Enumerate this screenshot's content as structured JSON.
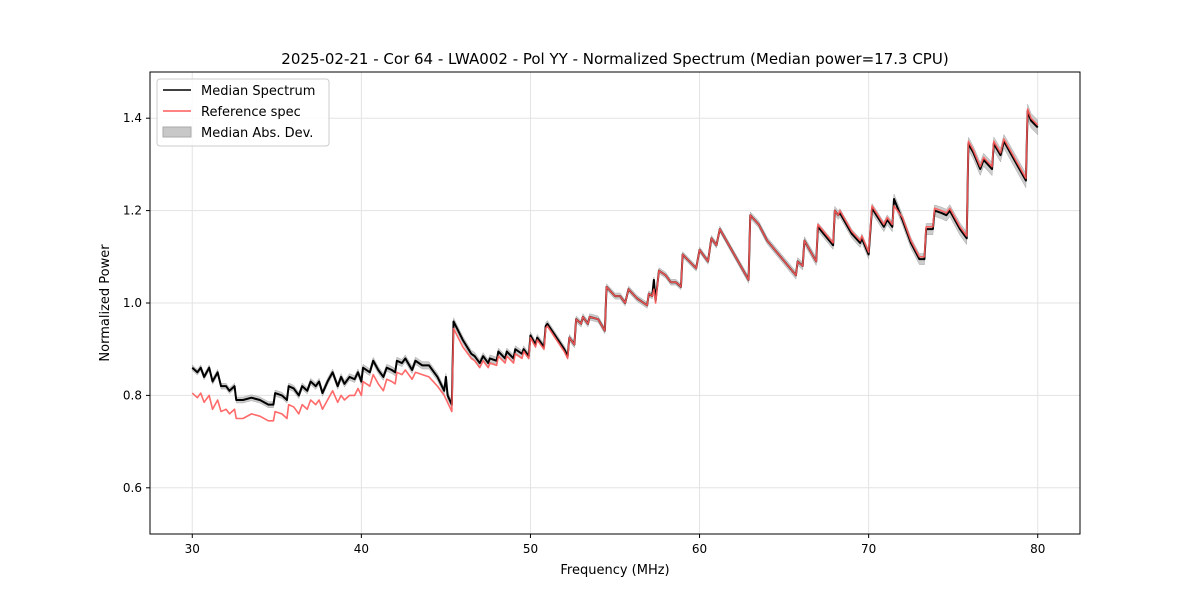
{
  "chart_data": {
    "type": "line",
    "title": "2025-02-21 - Cor 64 - LWA002 - Pol YY - Normalized Spectrum (Median power=17.3 CPU)",
    "xlabel": "Frequency (MHz)",
    "ylabel": "Normalized Power",
    "xlim": [
      27.5,
      82.5
    ],
    "ylim": [
      0.5,
      1.5
    ],
    "xticks": [
      30,
      40,
      50,
      60,
      70,
      80
    ],
    "xtick_labels": [
      "30",
      "40",
      "50",
      "60",
      "70",
      "80"
    ],
    "yticks": [
      0.6,
      0.8,
      1.0,
      1.2,
      1.4
    ],
    "ytick_labels": [
      "0.6",
      "0.8",
      "1.0",
      "1.2",
      "1.4"
    ],
    "grid": true,
    "legend_position": "top-left",
    "legend": [
      "Median Spectrum",
      "Reference spec",
      "Median Abs. Dev."
    ],
    "colors": {
      "median": "#000000",
      "reference": "#ff5a5a",
      "mad": "#bbbbbb"
    },
    "median": [
      [
        30.0,
        0.86
      ],
      [
        30.3,
        0.85
      ],
      [
        30.5,
        0.86
      ],
      [
        30.7,
        0.84
      ],
      [
        31.0,
        0.86
      ],
      [
        31.2,
        0.83
      ],
      [
        31.5,
        0.85
      ],
      [
        31.7,
        0.82
      ],
      [
        32.0,
        0.82
      ],
      [
        32.2,
        0.81
      ],
      [
        32.5,
        0.82
      ],
      [
        32.6,
        0.79
      ],
      [
        33.0,
        0.79
      ],
      [
        33.5,
        0.795
      ],
      [
        34.0,
        0.79
      ],
      [
        34.5,
        0.78
      ],
      [
        34.8,
        0.78
      ],
      [
        34.9,
        0.805
      ],
      [
        35.3,
        0.8
      ],
      [
        35.6,
        0.79
      ],
      [
        35.7,
        0.82
      ],
      [
        36.0,
        0.815
      ],
      [
        36.3,
        0.8
      ],
      [
        36.5,
        0.82
      ],
      [
        36.8,
        0.81
      ],
      [
        37.0,
        0.83
      ],
      [
        37.3,
        0.82
      ],
      [
        37.5,
        0.83
      ],
      [
        37.7,
        0.805
      ],
      [
        38.0,
        0.83
      ],
      [
        38.3,
        0.85
      ],
      [
        38.6,
        0.82
      ],
      [
        38.8,
        0.84
      ],
      [
        39.0,
        0.825
      ],
      [
        39.3,
        0.84
      ],
      [
        39.6,
        0.835
      ],
      [
        39.8,
        0.85
      ],
      [
        40.0,
        0.83
      ],
      [
        40.1,
        0.86
      ],
      [
        40.5,
        0.85
      ],
      [
        40.7,
        0.875
      ],
      [
        41.0,
        0.855
      ],
      [
        41.3,
        0.84
      ],
      [
        41.5,
        0.86
      ],
      [
        41.8,
        0.855
      ],
      [
        42.0,
        0.85
      ],
      [
        42.1,
        0.875
      ],
      [
        42.4,
        0.87
      ],
      [
        42.6,
        0.88
      ],
      [
        43.0,
        0.855
      ],
      [
        43.2,
        0.875
      ],
      [
        43.6,
        0.865
      ],
      [
        44.0,
        0.865
      ],
      [
        44.5,
        0.84
      ],
      [
        44.9,
        0.81
      ],
      [
        45.0,
        0.84
      ],
      [
        45.1,
        0.8
      ],
      [
        45.35,
        0.78
      ],
      [
        45.45,
        0.96
      ],
      [
        46.0,
        0.92
      ],
      [
        46.5,
        0.89
      ],
      [
        46.7,
        0.885
      ],
      [
        47.0,
        0.87
      ],
      [
        47.2,
        0.885
      ],
      [
        47.5,
        0.87
      ],
      [
        47.6,
        0.88
      ],
      [
        48.0,
        0.875
      ],
      [
        48.1,
        0.895
      ],
      [
        48.5,
        0.88
      ],
      [
        48.6,
        0.895
      ],
      [
        49.0,
        0.88
      ],
      [
        49.1,
        0.9
      ],
      [
        49.5,
        0.89
      ],
      [
        49.6,
        0.9
      ],
      [
        49.9,
        0.885
      ],
      [
        50.0,
        0.93
      ],
      [
        50.3,
        0.91
      ],
      [
        50.4,
        0.925
      ],
      [
        50.8,
        0.905
      ],
      [
        50.9,
        0.95
      ],
      [
        51.0,
        0.955
      ],
      [
        52.0,
        0.9
      ],
      [
        52.2,
        0.885
      ],
      [
        52.3,
        0.925
      ],
      [
        52.6,
        0.91
      ],
      [
        52.7,
        0.965
      ],
      [
        53.0,
        0.955
      ],
      [
        53.1,
        0.97
      ],
      [
        53.4,
        0.955
      ],
      [
        53.5,
        0.97
      ],
      [
        54.0,
        0.965
      ],
      [
        54.4,
        0.94
      ],
      [
        54.5,
        1.035
      ],
      [
        55.0,
        1.015
      ],
      [
        55.3,
        1.015
      ],
      [
        55.6,
        1.0
      ],
      [
        55.8,
        1.03
      ],
      [
        56.3,
        1.01
      ],
      [
        56.9,
        0.995
      ],
      [
        57.0,
        1.02
      ],
      [
        57.2,
        1.015
      ],
      [
        57.3,
        1.05
      ],
      [
        57.4,
        1.005
      ],
      [
        57.6,
        1.07
      ],
      [
        58.0,
        1.06
      ],
      [
        58.3,
        1.045
      ],
      [
        58.6,
        1.045
      ],
      [
        58.9,
        1.035
      ],
      [
        59.0,
        1.105
      ],
      [
        59.8,
        1.075
      ],
      [
        60.0,
        1.115
      ],
      [
        60.5,
        1.09
      ],
      [
        60.7,
        1.14
      ],
      [
        61.0,
        1.125
      ],
      [
        61.2,
        1.16
      ],
      [
        62.9,
        1.05
      ],
      [
        63.0,
        1.19
      ],
      [
        63.5,
        1.17
      ],
      [
        64.0,
        1.135
      ],
      [
        65.7,
        1.06
      ],
      [
        65.8,
        1.09
      ],
      [
        66.1,
        1.08
      ],
      [
        66.2,
        1.135
      ],
      [
        66.9,
        1.09
      ],
      [
        67.0,
        1.165
      ],
      [
        67.9,
        1.125
      ],
      [
        68.0,
        1.2
      ],
      [
        68.2,
        1.19
      ],
      [
        68.3,
        1.195
      ],
      [
        69.0,
        1.15
      ],
      [
        69.5,
        1.13
      ],
      [
        69.6,
        1.14
      ],
      [
        70.0,
        1.105
      ],
      [
        70.2,
        1.205
      ],
      [
        70.9,
        1.165
      ],
      [
        71.1,
        1.18
      ],
      [
        71.4,
        1.165
      ],
      [
        71.5,
        1.225
      ],
      [
        72.0,
        1.18
      ],
      [
        72.5,
        1.13
      ],
      [
        73.0,
        1.095
      ],
      [
        73.3,
        1.095
      ],
      [
        73.4,
        1.16
      ],
      [
        73.8,
        1.16
      ],
      [
        73.9,
        1.2
      ],
      [
        74.3,
        1.195
      ],
      [
        74.6,
        1.19
      ],
      [
        74.8,
        1.2
      ],
      [
        75.4,
        1.16
      ],
      [
        75.8,
        1.14
      ],
      [
        75.9,
        1.345
      ],
      [
        76.2,
        1.325
      ],
      [
        76.6,
        1.29
      ],
      [
        76.8,
        1.31
      ],
      [
        77.3,
        1.29
      ],
      [
        77.4,
        1.345
      ],
      [
        77.8,
        1.32
      ],
      [
        78.0,
        1.35
      ],
      [
        79.3,
        1.265
      ],
      [
        79.4,
        1.415
      ],
      [
        79.6,
        1.395
      ],
      [
        80.0,
        1.38
      ]
    ],
    "reference": [
      [
        30.0,
        0.805
      ],
      [
        30.3,
        0.795
      ],
      [
        30.5,
        0.805
      ],
      [
        30.7,
        0.785
      ],
      [
        31.0,
        0.8
      ],
      [
        31.2,
        0.77
      ],
      [
        31.5,
        0.79
      ],
      [
        31.7,
        0.765
      ],
      [
        32.0,
        0.77
      ],
      [
        32.2,
        0.76
      ],
      [
        32.5,
        0.77
      ],
      [
        32.6,
        0.75
      ],
      [
        33.0,
        0.75
      ],
      [
        33.5,
        0.76
      ],
      [
        34.0,
        0.755
      ],
      [
        34.5,
        0.745
      ],
      [
        34.8,
        0.745
      ],
      [
        34.9,
        0.765
      ],
      [
        35.3,
        0.76
      ],
      [
        35.6,
        0.75
      ],
      [
        35.7,
        0.78
      ],
      [
        36.0,
        0.775
      ],
      [
        36.3,
        0.76
      ],
      [
        36.5,
        0.78
      ],
      [
        36.8,
        0.77
      ],
      [
        37.0,
        0.79
      ],
      [
        37.3,
        0.78
      ],
      [
        37.5,
        0.79
      ],
      [
        37.7,
        0.77
      ],
      [
        38.0,
        0.79
      ],
      [
        38.3,
        0.81
      ],
      [
        38.6,
        0.785
      ],
      [
        38.8,
        0.8
      ],
      [
        39.0,
        0.79
      ],
      [
        39.3,
        0.8
      ],
      [
        39.6,
        0.8
      ],
      [
        39.8,
        0.815
      ],
      [
        40.0,
        0.8
      ],
      [
        40.1,
        0.83
      ],
      [
        40.5,
        0.82
      ],
      [
        40.7,
        0.845
      ],
      [
        41.0,
        0.825
      ],
      [
        41.3,
        0.81
      ],
      [
        41.5,
        0.835
      ],
      [
        41.8,
        0.83
      ],
      [
        42.0,
        0.825
      ],
      [
        42.1,
        0.85
      ],
      [
        42.4,
        0.845
      ],
      [
        42.6,
        0.855
      ],
      [
        43.0,
        0.835
      ],
      [
        43.2,
        0.85
      ],
      [
        43.6,
        0.845
      ],
      [
        44.0,
        0.84
      ],
      [
        44.5,
        0.82
      ],
      [
        44.9,
        0.8
      ],
      [
        45.35,
        0.765
      ],
      [
        45.45,
        0.945
      ],
      [
        46.0,
        0.905
      ],
      [
        46.5,
        0.88
      ],
      [
        46.7,
        0.875
      ],
      [
        47.0,
        0.86
      ],
      [
        47.2,
        0.875
      ],
      [
        47.5,
        0.86
      ],
      [
        47.6,
        0.87
      ],
      [
        48.0,
        0.865
      ],
      [
        48.1,
        0.885
      ],
      [
        48.5,
        0.87
      ],
      [
        48.6,
        0.885
      ],
      [
        49.0,
        0.87
      ],
      [
        49.1,
        0.89
      ],
      [
        49.5,
        0.88
      ],
      [
        49.6,
        0.895
      ],
      [
        49.9,
        0.88
      ],
      [
        50.0,
        0.925
      ],
      [
        50.3,
        0.905
      ],
      [
        50.4,
        0.92
      ],
      [
        50.8,
        0.9
      ],
      [
        50.9,
        0.945
      ],
      [
        51.0,
        0.95
      ],
      [
        52.0,
        0.895
      ],
      [
        52.2,
        0.88
      ],
      [
        52.3,
        0.925
      ],
      [
        52.6,
        0.91
      ],
      [
        52.7,
        0.965
      ],
      [
        53.0,
        0.955
      ],
      [
        53.1,
        0.97
      ],
      [
        53.4,
        0.955
      ],
      [
        53.5,
        0.97
      ],
      [
        54.0,
        0.965
      ],
      [
        54.4,
        0.94
      ],
      [
        54.5,
        1.035
      ],
      [
        55.0,
        1.015
      ],
      [
        55.3,
        1.015
      ],
      [
        55.6,
        1.0
      ],
      [
        55.8,
        1.03
      ],
      [
        56.3,
        1.01
      ],
      [
        56.9,
        0.995
      ],
      [
        57.0,
        1.02
      ],
      [
        57.2,
        1.015
      ],
      [
        57.3,
        1.03
      ],
      [
        57.4,
        1.0
      ],
      [
        57.6,
        1.07
      ],
      [
        58.0,
        1.06
      ],
      [
        58.3,
        1.045
      ],
      [
        58.6,
        1.045
      ],
      [
        58.9,
        1.035
      ],
      [
        59.0,
        1.105
      ],
      [
        59.8,
        1.075
      ],
      [
        60.0,
        1.115
      ],
      [
        60.5,
        1.09
      ],
      [
        60.7,
        1.14
      ],
      [
        61.0,
        1.125
      ],
      [
        61.2,
        1.16
      ],
      [
        62.9,
        1.05
      ],
      [
        63.0,
        1.19
      ],
      [
        63.5,
        1.17
      ],
      [
        64.0,
        1.135
      ],
      [
        65.7,
        1.06
      ],
      [
        65.8,
        1.09
      ],
      [
        66.1,
        1.08
      ],
      [
        66.2,
        1.135
      ],
      [
        66.9,
        1.09
      ],
      [
        67.0,
        1.17
      ],
      [
        67.9,
        1.13
      ],
      [
        68.0,
        1.2
      ],
      [
        68.2,
        1.19
      ],
      [
        68.3,
        1.2
      ],
      [
        69.0,
        1.155
      ],
      [
        69.5,
        1.135
      ],
      [
        69.6,
        1.145
      ],
      [
        70.0,
        1.11
      ],
      [
        70.2,
        1.21
      ],
      [
        70.9,
        1.17
      ],
      [
        71.1,
        1.185
      ],
      [
        71.4,
        1.17
      ],
      [
        71.5,
        1.21
      ],
      [
        72.0,
        1.185
      ],
      [
        72.5,
        1.135
      ],
      [
        73.0,
        1.1
      ],
      [
        73.3,
        1.1
      ],
      [
        73.4,
        1.165
      ],
      [
        73.8,
        1.165
      ],
      [
        73.9,
        1.205
      ],
      [
        74.3,
        1.2
      ],
      [
        74.6,
        1.195
      ],
      [
        74.8,
        1.205
      ],
      [
        75.4,
        1.165
      ],
      [
        75.8,
        1.145
      ],
      [
        75.9,
        1.35
      ],
      [
        76.2,
        1.33
      ],
      [
        76.6,
        1.295
      ],
      [
        76.8,
        1.315
      ],
      [
        77.3,
        1.295
      ],
      [
        77.4,
        1.35
      ],
      [
        77.8,
        1.325
      ],
      [
        78.0,
        1.355
      ],
      [
        79.3,
        1.27
      ],
      [
        79.4,
        1.42
      ],
      [
        79.6,
        1.4
      ],
      [
        80.0,
        1.385
      ]
    ],
    "mad_halfwidth": [
      [
        30,
        0.006
      ],
      [
        45,
        0.008
      ],
      [
        60,
        0.006
      ],
      [
        70,
        0.01
      ],
      [
        80,
        0.016
      ]
    ]
  }
}
